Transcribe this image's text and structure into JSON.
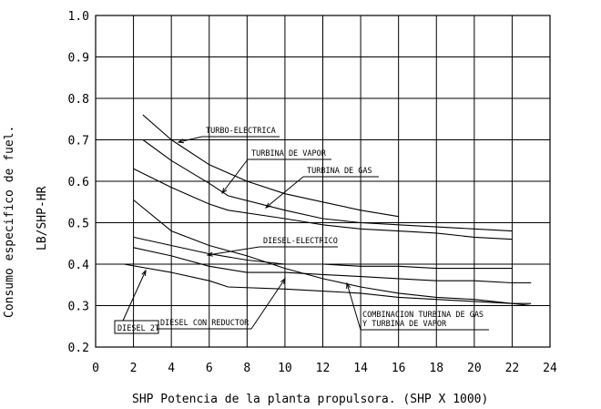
{
  "chart_data": {
    "type": "line",
    "title": "",
    "xlabel": "SHP   Potencia  de  la  planta  propulsora.  (SHP X 1000)",
    "ylabel_outer": "Consumo   especifico   de   fuel.",
    "ylabel_inner": "LB/SHP-HR",
    "xlim": [
      0,
      24
    ],
    "ylim": [
      0.2,
      1.0
    ],
    "x_ticks": [
      0,
      2,
      4,
      6,
      8,
      10,
      12,
      14,
      16,
      18,
      20,
      22,
      24
    ],
    "y_ticks": [
      0.2,
      0.3,
      0.4,
      0.5,
      0.6,
      0.7,
      0.8,
      0.9,
      1.0
    ],
    "x_tick_labels": [
      "0",
      "2",
      "4",
      "6",
      "8",
      "10",
      "12",
      "14",
      "16",
      "18",
      "20",
      "22",
      "24"
    ],
    "y_tick_labels": [
      "0.2",
      "0.3",
      "0.4",
      "0.5",
      "0.6",
      "0.7",
      "0.8",
      "0.9",
      "1.0"
    ],
    "grid": true,
    "series": [
      {
        "name": "TURBO-ELECTRICA",
        "x": [
          2.5,
          4,
          6,
          8,
          10,
          12,
          14,
          16
        ],
        "y": [
          0.76,
          0.7,
          0.64,
          0.6,
          0.57,
          0.55,
          0.53,
          0.515
        ]
      },
      {
        "name": "TURBINA DE VAPOR",
        "x": [
          2.5,
          4,
          6,
          7,
          10,
          12,
          14,
          16,
          18,
          20,
          22
        ],
        "y": [
          0.7,
          0.65,
          0.595,
          0.565,
          0.53,
          0.51,
          0.5,
          0.495,
          0.49,
          0.485,
          0.48
        ]
      },
      {
        "name": "TURBINA DE GAS",
        "x": [
          2,
          4,
          6,
          7,
          10,
          12,
          14,
          16,
          18,
          20,
          22
        ],
        "y": [
          0.63,
          0.585,
          0.545,
          0.53,
          0.51,
          0.495,
          0.485,
          0.48,
          0.475,
          0.465,
          0.46
        ]
      },
      {
        "name": "DIESEL-ELECTRICO",
        "x": [
          2,
          4,
          6,
          8,
          10,
          12,
          14,
          16,
          18,
          20,
          22
        ],
        "y": [
          0.465,
          0.445,
          0.425,
          0.41,
          0.4,
          0.4,
          0.395,
          0.395,
          0.39,
          0.39,
          0.39
        ]
      },
      {
        "name": "DIESEL CON REDUCTOR",
        "x": [
          2,
          4,
          6,
          8,
          10,
          12,
          14,
          16,
          18,
          20,
          22,
          23
        ],
        "y": [
          0.44,
          0.42,
          0.395,
          0.38,
          0.38,
          0.375,
          0.37,
          0.365,
          0.36,
          0.36,
          0.355,
          0.355
        ]
      },
      {
        "name": "DIESEL 2T",
        "x": [
          1.5,
          4,
          6,
          7,
          10,
          12,
          14,
          16,
          18,
          20,
          22,
          23
        ],
        "y": [
          0.4,
          0.38,
          0.36,
          0.345,
          0.34,
          0.335,
          0.33,
          0.32,
          0.315,
          0.31,
          0.305,
          0.3
        ]
      },
      {
        "name": "COMBINACION TURBINA DE GAS Y TURBINA DE VAPOR",
        "x": [
          2,
          4,
          6,
          8,
          10,
          12,
          14,
          16,
          18,
          20,
          22,
          23
        ],
        "y": [
          0.555,
          0.48,
          0.445,
          0.42,
          0.39,
          0.365,
          0.345,
          0.33,
          0.32,
          0.315,
          0.305,
          0.305
        ]
      }
    ],
    "annotations": [
      {
        "text": "TURBO-ELECTRICA",
        "points_to": "TURBO-ELECTRICA"
      },
      {
        "text": "TURBINA  DE  VAPOR",
        "points_to": "TURBINA DE VAPOR"
      },
      {
        "text": "TURBINA  DE  GAS",
        "points_to": "TURBINA DE GAS"
      },
      {
        "text": "DIESEL-ELECTRICO",
        "points_to": "DIESEL-ELECTRICO"
      },
      {
        "text": "DIESEL  CON  REDUCTOR",
        "points_to": "DIESEL CON REDUCTOR"
      },
      {
        "text": "DIESEL  2T",
        "points_to": "DIESEL 2T"
      },
      {
        "text": "COMBINACION  TURBINA  DE  GAS",
        "points_to": "COMBINACION TURBINA DE GAS Y TURBINA DE VAPOR"
      },
      {
        "text": "Y  TURBINA  DE  VAPOR",
        "points_to": "COMBINACION TURBINA DE GAS Y TURBINA DE VAPOR"
      }
    ],
    "line_color": "#000000",
    "background": "#ffffff"
  }
}
